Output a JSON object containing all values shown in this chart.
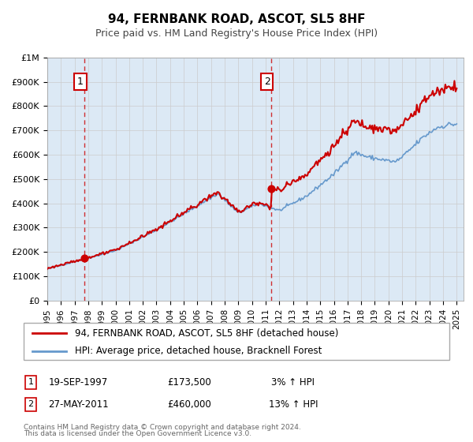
{
  "title": "94, FERNBANK ROAD, ASCOT, SL5 8HF",
  "subtitle": "Price paid vs. HM Land Registry's House Price Index (HPI)",
  "xlim_start": 1995.0,
  "xlim_end": 2025.5,
  "ylim_min": 0,
  "ylim_max": 1000000,
  "yticks": [
    0,
    100000,
    200000,
    300000,
    400000,
    500000,
    600000,
    700000,
    800000,
    900000,
    1000000
  ],
  "ytick_labels": [
    "£0",
    "£100K",
    "£200K",
    "£300K",
    "£400K",
    "£500K",
    "£600K",
    "£700K",
    "£800K",
    "£900K",
    "£1M"
  ],
  "xticks": [
    1995,
    1996,
    1997,
    1998,
    1999,
    2000,
    2001,
    2002,
    2003,
    2004,
    2005,
    2006,
    2007,
    2008,
    2009,
    2010,
    2011,
    2012,
    2013,
    2014,
    2015,
    2016,
    2017,
    2018,
    2019,
    2020,
    2021,
    2022,
    2023,
    2024,
    2025
  ],
  "grid_color": "#cccccc",
  "background_color": "#dce9f5",
  "plot_bg_color": "#dce9f5",
  "hpi_line_color": "#6699cc",
  "price_line_color": "#cc0000",
  "sale1_x": 1997.72,
  "sale1_y": 173500,
  "sale1_label": "1",
  "sale1_date": "19-SEP-1997",
  "sale1_price": "£173,500",
  "sale1_hpi": "3% ↑ HPI",
  "sale2_x": 2011.4,
  "sale2_y": 460000,
  "sale2_label": "2",
  "sale2_date": "27-MAY-2011",
  "sale2_price": "£460,000",
  "sale2_hpi": "13% ↑ HPI",
  "vline1_x": 1997.72,
  "vline2_x": 2011.4,
  "vline_color": "#cc0000",
  "legend_label1": "94, FERNBANK ROAD, ASCOT, SL5 8HF (detached house)",
  "legend_label2": "HPI: Average price, detached house, Bracknell Forest",
  "footer1": "Contains HM Land Registry data © Crown copyright and database right 2024.",
  "footer2": "This data is licensed under the Open Government Licence v3.0."
}
